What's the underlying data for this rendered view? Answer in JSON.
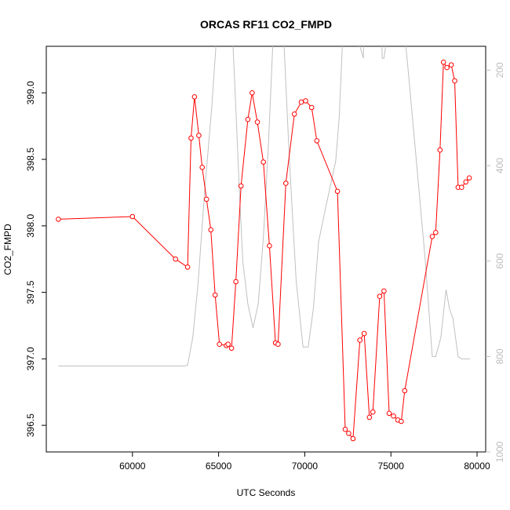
{
  "chart_data": {
    "type": "line",
    "title": "ORCAS RF11 CO2_FMPD",
    "xlabel": "UTC Seconds",
    "ylabel": "CO2_FMPD",
    "xlim": [
      55000,
      80500
    ],
    "ylim": [
      396.3,
      399.35
    ],
    "x_ticks": [
      60000,
      65000,
      70000,
      75000,
      80000
    ],
    "y_ticks": [
      396.5,
      397.0,
      397.5,
      398.0,
      398.5,
      399.0
    ],
    "y2_ticks": [
      200,
      400,
      600,
      800,
      1000
    ],
    "y2_lim": [
      1000,
      150
    ],
    "y2_axis_side": "right",
    "grid": false,
    "legend": "none",
    "series": [
      {
        "kind": "line-with-points",
        "color": "#ff0000",
        "axis": "left",
        "x": [
          55700,
          60000,
          62500,
          63200,
          63400,
          63600,
          63850,
          64050,
          64300,
          64550,
          64800,
          65050,
          65450,
          65550,
          65750,
          66000,
          66300,
          66700,
          66950,
          67250,
          67600,
          67950,
          68300,
          68450,
          68900,
          69400,
          69800,
          70050,
          70400,
          70700,
          71900,
          72350,
          72550,
          72800,
          73200,
          73450,
          73750,
          73950,
          74350,
          74600,
          74900,
          75150,
          75400,
          75600,
          75800,
          77400,
          77600,
          77850,
          78050,
          78250,
          78500,
          78700,
          78900,
          79100,
          79350,
          79550
        ],
        "y": [
          398.05,
          398.07,
          397.75,
          397.69,
          398.66,
          398.97,
          398.68,
          398.44,
          398.2,
          397.97,
          397.48,
          397.11,
          397.1,
          397.11,
          397.08,
          397.58,
          398.3,
          398.8,
          399.0,
          398.78,
          398.48,
          397.85,
          397.12,
          397.11,
          398.32,
          398.84,
          398.93,
          398.94,
          398.89,
          398.64,
          398.26,
          396.47,
          396.44,
          396.4,
          397.14,
          397.19,
          396.56,
          396.6,
          397.47,
          397.51,
          396.59,
          396.57,
          396.54,
          396.53,
          396.76,
          397.92,
          397.95,
          398.57,
          399.23,
          399.19,
          399.21,
          399.09,
          398.29,
          398.29,
          398.33,
          398.36
        ]
      },
      {
        "kind": "line",
        "color": "#c0c0c0",
        "axis": "right",
        "x": [
          55700,
          63000,
          63200,
          63500,
          63800,
          64200,
          64600,
          64900,
          65200,
          65600,
          65800,
          66000,
          66200,
          66400,
          66700,
          67000,
          67300,
          67600,
          67900,
          68200,
          68400,
          68600,
          68800,
          69100,
          69500,
          69900,
          70200,
          70500,
          70800,
          71200,
          71800,
          72000,
          72300,
          72600,
          73200,
          73400,
          73500,
          74300,
          74500,
          74600,
          75400,
          76000,
          76500,
          77000,
          77400,
          77600,
          77900,
          78200,
          78400,
          78600,
          78900,
          79100,
          79600
        ],
        "y": [
          820,
          820,
          818,
          760,
          650,
          450,
          280,
          120,
          -30,
          -30,
          120,
          280,
          450,
          600,
          690,
          740,
          690,
          550,
          350,
          100,
          -30,
          -30,
          150,
          380,
          640,
          780,
          780,
          700,
          560,
          490,
          390,
          300,
          50,
          -30,
          150,
          175,
          -30,
          -30,
          175,
          175,
          -30,
          200,
          400,
          600,
          800,
          800,
          760,
          660,
          700,
          720,
          800,
          805,
          805
        ]
      }
    ]
  }
}
